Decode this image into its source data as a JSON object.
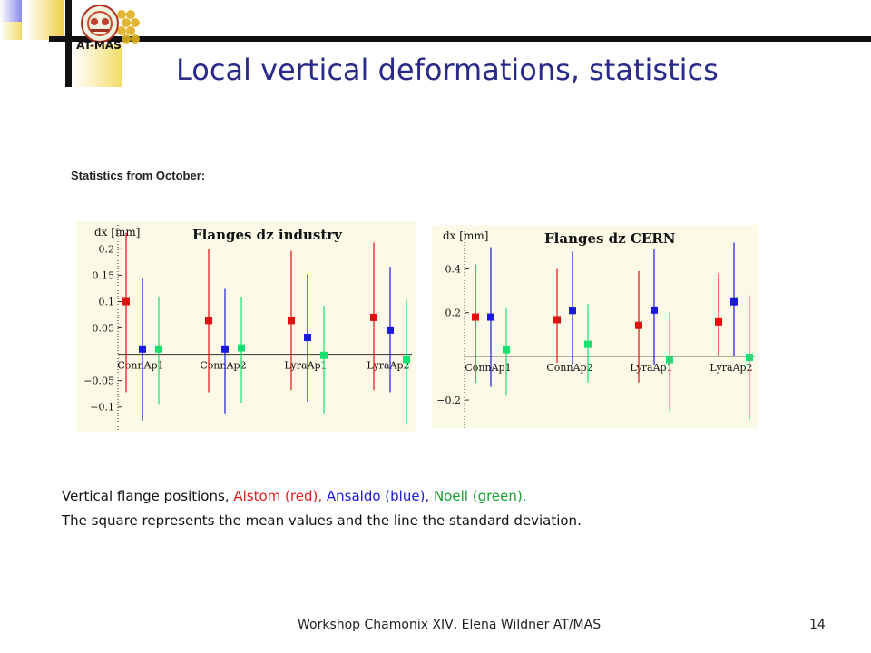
{
  "slide": {
    "title": "Local vertical deformations, statistics",
    "subtitle": "Statistics from October:",
    "logo_text": "AT-MAS",
    "caption_line1": {
      "prefix": "Vertical flange positions, ",
      "alstom": "Alstom (red),",
      "ansaldo": "Ansaldo (blue),",
      "noell": "Noell (green).",
      "sep": " "
    },
    "caption_line2": "The square represents the mean values and the line the standard deviation.",
    "footer": "Workshop Chamonix XIV, Elena Wildner AT/MAS",
    "page_number": "14",
    "colors": {
      "title": "#2a2a8a",
      "alstom": "#e02020",
      "ansaldo": "#1a1ad8",
      "noell": "#18a030"
    }
  },
  "chart_data": [
    {
      "type": "scatter",
      "title": "Flanges dz industry",
      "ylabel": "dx [mm]",
      "xlabel": "",
      "categories": [
        "ConnAp1",
        "ConnAp2",
        "LyraAp1",
        "LyraAp2"
      ],
      "ylim": [
        -0.14,
        0.235
      ],
      "yticks": [
        -0.1,
        -0.05,
        0.05,
        0.1,
        0.15,
        0.2
      ],
      "ytick_labels": [
        "−0.1",
        "−0.05",
        "0.05",
        "0.1",
        "0.15",
        "0.2"
      ],
      "series": [
        {
          "color": "#e01010",
          "mean": [
            0.1,
            0.064,
            0.064,
            0.07
          ],
          "low": [
            -0.072,
            -0.072,
            -0.068,
            -0.068
          ],
          "high": [
            0.23,
            0.2,
            0.196,
            0.212
          ]
        },
        {
          "color": "#1a1ad8",
          "mean": [
            0.01,
            0.01,
            0.032,
            0.046
          ],
          "low": [
            -0.126,
            -0.112,
            -0.09,
            -0.072
          ],
          "high": [
            0.144,
            0.124,
            0.152,
            0.166
          ]
        },
        {
          "color": "#18e070",
          "mean": [
            0.01,
            0.012,
            -0.002,
            -0.01
          ],
          "low": [
            -0.096,
            -0.092,
            -0.112,
            -0.134
          ],
          "high": [
            0.11,
            0.108,
            0.092,
            0.104
          ]
        }
      ]
    },
    {
      "type": "scatter",
      "title": "Flanges dz CERN",
      "ylabel": "dx [mm]",
      "xlabel": "",
      "categories": [
        "ConnAp1",
        "ConnAp2",
        "LyraAp1",
        "LyraAp2"
      ],
      "ylim": [
        -0.32,
        0.56
      ],
      "yticks": [
        -0.2,
        0.2,
        0.4
      ],
      "ytick_labels": [
        "−0.2",
        "0.2",
        "0.4"
      ],
      "series": [
        {
          "color": "#e01010",
          "mean": [
            0.18,
            0.168,
            0.142,
            0.158
          ],
          "low": [
            -0.12,
            -0.03,
            -0.12,
            0.0
          ],
          "high": [
            0.42,
            0.4,
            0.39,
            0.38
          ]
        },
        {
          "color": "#1a1ad8",
          "mean": [
            0.18,
            0.21,
            0.212,
            0.25
          ],
          "low": [
            -0.14,
            -0.04,
            -0.04,
            0.0
          ],
          "high": [
            0.5,
            0.48,
            0.49,
            0.52
          ]
        },
        {
          "color": "#18e070",
          "mean": [
            0.03,
            0.055,
            -0.015,
            -0.005
          ],
          "low": [
            -0.18,
            -0.12,
            -0.25,
            -0.29
          ],
          "high": [
            0.22,
            0.24,
            0.2,
            0.28
          ]
        }
      ]
    }
  ]
}
